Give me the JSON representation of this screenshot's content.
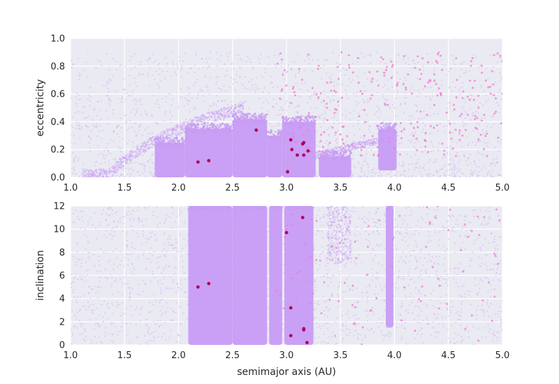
{
  "chart_data": [
    {
      "type": "scatter",
      "title": "",
      "xlabel": "",
      "ylabel": "eccentricity",
      "xlim": [
        1.0,
        5.0
      ],
      "ylim": [
        0.0,
        1.0
      ],
      "xticks": [
        "1.0",
        "1.5",
        "2.0",
        "2.5",
        "3.0",
        "3.5",
        "4.0",
        "4.5",
        "5.0"
      ],
      "yticks": [
        "0.0",
        "0.2",
        "0.4",
        "0.6",
        "0.8",
        "1.0"
      ],
      "grid": true,
      "colors": {
        "background": "#eaeaf2",
        "grid": "#ffffff",
        "main_population": "#c79cf4",
        "sparse_population": "#f47ad2",
        "highlighted": "#b0005a"
      },
      "dense_regions": [
        {
          "x": [
            1.78,
            2.06
          ],
          "y": [
            0.0,
            0.25
          ]
        },
        {
          "x": [
            2.06,
            2.5
          ],
          "y": [
            0.0,
            0.35
          ]
        },
        {
          "x": [
            2.5,
            2.82
          ],
          "y": [
            0.0,
            0.42
          ]
        },
        {
          "x": [
            2.82,
            2.96
          ],
          "y": [
            0.0,
            0.3
          ]
        },
        {
          "x": [
            2.96,
            3.27
          ],
          "y": [
            0.0,
            0.4
          ]
        },
        {
          "x": [
            3.3,
            3.6
          ],
          "y": [
            0.0,
            0.15
          ]
        },
        {
          "x": [
            3.85,
            4.02
          ],
          "y": [
            0.05,
            0.35
          ]
        }
      ],
      "highlighted_points": [
        {
          "x": 2.18,
          "y": 0.11
        },
        {
          "x": 2.28,
          "y": 0.12
        },
        {
          "x": 2.72,
          "y": 0.34
        },
        {
          "x": 3.01,
          "y": 0.04
        },
        {
          "x": 3.04,
          "y": 0.27
        },
        {
          "x": 3.05,
          "y": 0.2
        },
        {
          "x": 3.1,
          "y": 0.16
        },
        {
          "x": 3.15,
          "y": 0.24
        },
        {
          "x": 3.16,
          "y": 0.25
        },
        {
          "x": 3.16,
          "y": 0.16
        },
        {
          "x": 3.2,
          "y": 0.19
        }
      ]
    },
    {
      "type": "scatter",
      "title": "",
      "xlabel": "semimajor axis (AU)",
      "ylabel": "inclination",
      "xlim": [
        1.0,
        5.0
      ],
      "ylim": [
        0,
        12
      ],
      "xticks": [
        "1.0",
        "1.5",
        "2.0",
        "2.5",
        "3.0",
        "3.5",
        "4.0",
        "4.5",
        "5.0"
      ],
      "yticks": [
        "0",
        "2",
        "4",
        "6",
        "8",
        "10",
        "12"
      ],
      "grid": true,
      "colors": {
        "background": "#eaeaf2",
        "grid": "#ffffff",
        "main_population": "#c79cf4",
        "sparse_population": "#f47ad2",
        "highlighted": "#b0005a"
      },
      "dense_regions": [
        {
          "x": [
            2.09,
            2.5
          ],
          "y": [
            0,
            12
          ]
        },
        {
          "x": [
            2.5,
            2.82
          ],
          "y": [
            0,
            12
          ]
        },
        {
          "x": [
            2.84,
            2.96
          ],
          "y": [
            0,
            12
          ]
        },
        {
          "x": [
            2.98,
            3.25
          ],
          "y": [
            0,
            12
          ]
        },
        {
          "x": [
            3.92,
            3.99
          ],
          "y": [
            1.5,
            12
          ]
        }
      ],
      "highlighted_points": [
        {
          "x": 2.18,
          "y": 5.0
        },
        {
          "x": 2.28,
          "y": 5.3
        },
        {
          "x": 3.0,
          "y": 9.7
        },
        {
          "x": 3.04,
          "y": 3.2
        },
        {
          "x": 3.04,
          "y": 0.8
        },
        {
          "x": 3.15,
          "y": 11.0
        },
        {
          "x": 3.16,
          "y": 1.4
        },
        {
          "x": 3.16,
          "y": 1.3
        },
        {
          "x": 3.19,
          "y": 0.2
        }
      ]
    }
  ]
}
